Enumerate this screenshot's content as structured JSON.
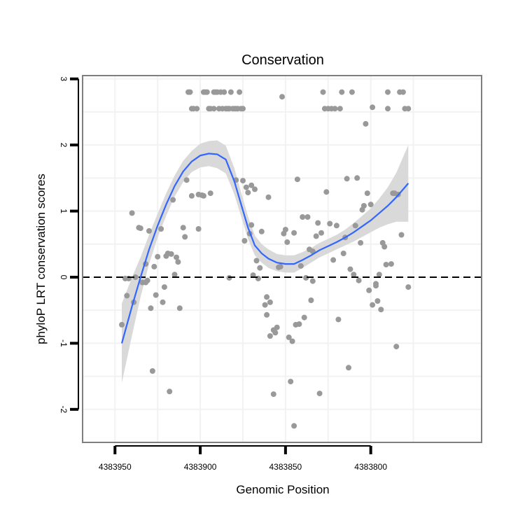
{
  "chart_data": {
    "type": "scatter",
    "title": "Conservation",
    "xlabel": "Genomic Position",
    "ylabel": "phyloP LRT conservation scores",
    "x_reversed": true,
    "xlim": [
      4383735,
      4383969
    ],
    "ylim": [
      -2.5,
      3.05
    ],
    "xticks": [
      4383950,
      4383900,
      4383850,
      4383800
    ],
    "xtick_labels": [
      "4383950",
      "4383900",
      "4383850",
      "4383800"
    ],
    "yticks": [
      -2,
      -1,
      0,
      1,
      2,
      3
    ],
    "ytick_labels": [
      "-2",
      "-1",
      "0",
      "1",
      "2",
      "3"
    ],
    "grid": true,
    "legend": "none",
    "reference_line": {
      "y": 0,
      "style": "dashed",
      "color": "#000000"
    },
    "colors": {
      "points": "#999999",
      "smooth_line": "#3366ff",
      "ribbon": "#d9d9d9",
      "panel_border": "#7f7f7f",
      "grid": "#f2f2f2"
    },
    "points": [
      [
        4383946,
        -0.72
      ],
      [
        4383944,
        -0.02
      ],
      [
        4383943,
        -0.28
      ],
      [
        4383942,
        -0.02
      ],
      [
        4383940,
        0.97
      ],
      [
        4383939,
        -0.38
      ],
      [
        4383938,
        0.0
      ],
      [
        4383936,
        0.75
      ],
      [
        4383935,
        0.74
      ],
      [
        4383934,
        -0.08
      ],
      [
        4383932,
        -0.08
      ],
      [
        4383932,
        0.2
      ],
      [
        4383931,
        -0.05
      ],
      [
        4383930,
        0.7
      ],
      [
        4383929,
        -0.47
      ],
      [
        4383928,
        -1.42
      ],
      [
        4383927,
        0.16
      ],
      [
        4383926,
        -0.27
      ],
      [
        4383925,
        0.31
      ],
      [
        4383923,
        0.73
      ],
      [
        4383922,
        -0.38
      ],
      [
        4383921,
        -0.15
      ],
      [
        4383920,
        0.32
      ],
      [
        4383919,
        0.36
      ],
      [
        4383918,
        -1.73
      ],
      [
        4383917,
        0.35
      ],
      [
        4383916,
        1.17
      ],
      [
        4383915,
        0.04
      ],
      [
        4383914,
        0.3
      ],
      [
        4383913,
        0.23
      ],
      [
        4383912,
        -0.47
      ],
      [
        4383910,
        0.75
      ],
      [
        4383909,
        0.61
      ],
      [
        4383908,
        1.47
      ],
      [
        4383907,
        2.8
      ],
      [
        4383906,
        2.8
      ],
      [
        4383905,
        2.55
      ],
      [
        4383904,
        2.55
      ],
      [
        4383902,
        2.55
      ],
      [
        4383905,
        1.23
      ],
      [
        4383901,
        1.25
      ],
      [
        4383901,
        0.73
      ],
      [
        4383899,
        1.24
      ],
      [
        4383898,
        1.23
      ],
      [
        4383898,
        2.8
      ],
      [
        4383897,
        2.8
      ],
      [
        4383896,
        2.8
      ],
      [
        4383895,
        2.55
      ],
      [
        4383894,
        2.55
      ],
      [
        4383894,
        1.27
      ],
      [
        4383892,
        2.55
      ],
      [
        4383892,
        2.8
      ],
      [
        4383891,
        2.8
      ],
      [
        4383890,
        2.8
      ],
      [
        4383889,
        2.55
      ],
      [
        4383888,
        2.8
      ],
      [
        4383887,
        2.55
      ],
      [
        4383886,
        2.8
      ],
      [
        4383885,
        2.55
      ],
      [
        4383884,
        2.55
      ],
      [
        4383883,
        2.55
      ],
      [
        4383883,
        -0.01
      ],
      [
        4383882,
        2.8
      ],
      [
        4383881,
        2.55
      ],
      [
        4383880,
        2.55
      ],
      [
        4383879,
        2.55
      ],
      [
        4383879,
        1.47
      ],
      [
        4383878,
        2.55
      ],
      [
        4383877,
        2.8
      ],
      [
        4383876,
        2.55
      ],
      [
        4383875,
        2.55
      ],
      [
        4383875,
        1.46
      ],
      [
        4383874,
        0.55
      ],
      [
        4383873,
        1.36
      ],
      [
        4383872,
        1.28
      ],
      [
        4383871,
        0.66
      ],
      [
        4383870,
        0.79
      ],
      [
        4383870,
        1.39
      ],
      [
        4383869,
        0.03
      ],
      [
        4383868,
        1.33
      ],
      [
        4383867,
        0.25
      ],
      [
        4383866,
        -0.02
      ],
      [
        4383865,
        0.14
      ],
      [
        4383864,
        0.69
      ],
      [
        4383862,
        -0.42
      ],
      [
        4383861,
        -0.3
      ],
      [
        4383861,
        -0.57
      ],
      [
        4383860,
        1.21
      ],
      [
        4383859,
        -0.38
      ],
      [
        4383859,
        -0.89
      ],
      [
        4383857,
        -1.77
      ],
      [
        4383857,
        -0.8
      ],
      [
        4383856,
        -0.84
      ],
      [
        4383855,
        -0.76
      ],
      [
        4383854,
        0.15
      ],
      [
        4383853,
        0.16
      ],
      [
        4383852,
        2.73
      ],
      [
        4383851,
        0.66
      ],
      [
        4383850,
        0.72
      ],
      [
        4383849,
        0.53
      ],
      [
        4383848,
        -0.91
      ],
      [
        4383847,
        -1.58
      ],
      [
        4383846,
        -0.97
      ],
      [
        4383845,
        -2.25
      ],
      [
        4383845,
        0.67
      ],
      [
        4383844,
        -0.72
      ],
      [
        4383843,
        1.48
      ],
      [
        4383842,
        -0.71
      ],
      [
        4383841,
        0.17
      ],
      [
        4383840,
        0.91
      ],
      [
        4383839,
        -0.61
      ],
      [
        4383838,
        -0.01
      ],
      [
        4383837,
        0.91
      ],
      [
        4383836,
        0.42
      ],
      [
        4383835,
        -0.35
      ],
      [
        4383834,
        0.39
      ],
      [
        4383834,
        -0.06
      ],
      [
        4383832,
        0.62
      ],
      [
        4383831,
        0.82
      ],
      [
        4383830,
        -1.76
      ],
      [
        4383829,
        0.67
      ],
      [
        4383828,
        2.8
      ],
      [
        4383827,
        2.55
      ],
      [
        4383826,
        1.29
      ],
      [
        4383825,
        2.55
      ],
      [
        4383824,
        0.81
      ],
      [
        4383823,
        2.55
      ],
      [
        4383822,
        0.26
      ],
      [
        4383821,
        2.55
      ],
      [
        4383820,
        0.78
      ],
      [
        4383819,
        -0.64
      ],
      [
        4383818,
        2.55
      ],
      [
        4383817,
        2.8
      ],
      [
        4383816,
        0.36
      ],
      [
        4383815,
        0.6
      ],
      [
        4383814,
        1.49
      ],
      [
        4383813,
        -1.37
      ],
      [
        4383812,
        0.12
      ],
      [
        4383811,
        2.8
      ],
      [
        4383810,
        0.04
      ],
      [
        4383809,
        0.78
      ],
      [
        4383808,
        1.5
      ],
      [
        4383807,
        -0.05
      ],
      [
        4383806,
        0.52
      ],
      [
        4383805,
        1.02
      ],
      [
        4383804,
        1.08
      ],
      [
        4383803,
        2.32
      ],
      [
        4383802,
        1.27
      ],
      [
        4383801,
        -0.2
      ],
      [
        4383800,
        1.1
      ],
      [
        4383799,
        -0.42
      ],
      [
        4383799,
        2.57
      ],
      [
        4383797,
        -0.13
      ],
      [
        4383796,
        -0.36
      ],
      [
        4383797,
        -0.1
      ],
      [
        4383795,
        0.04
      ],
      [
        4383794,
        -0.49
      ],
      [
        4383793,
        0.52
      ],
      [
        4383792,
        0.46
      ],
      [
        4383791,
        0.19
      ],
      [
        4383790,
        2.8
      ],
      [
        4383790,
        2.55
      ],
      [
        4383788,
        0.2
      ],
      [
        4383787,
        1.27
      ],
      [
        4383786,
        1.27
      ],
      [
        4383785,
        -1.05
      ],
      [
        4383784,
        1.25
      ],
      [
        4383783,
        2.8
      ],
      [
        4383782,
        0.64
      ],
      [
        4383781,
        2.8
      ],
      [
        4383780,
        2.55
      ],
      [
        4383778,
        2.55
      ],
      [
        4383778,
        -0.15
      ]
    ],
    "smooth": {
      "x": [
        4383946,
        4383940,
        4383935,
        4383930,
        4383925,
        4383920,
        4383915,
        4383910,
        4383905,
        4383900,
        4383895,
        4383890,
        4383885,
        4383880,
        4383876,
        4383872,
        4383868,
        4383864,
        4383860,
        4383855,
        4383850,
        4383845,
        4383840,
        4383835,
        4383830,
        4383825,
        4383820,
        4383815,
        4383810,
        4383805,
        4383800,
        4383795,
        4383790,
        4383785,
        4383778
      ],
      "y": [
        -1.0,
        -0.44,
        0.0,
        0.42,
        0.78,
        1.1,
        1.38,
        1.6,
        1.75,
        1.84,
        1.87,
        1.86,
        1.78,
        1.45,
        1.1,
        0.75,
        0.48,
        0.36,
        0.28,
        0.22,
        0.2,
        0.2,
        0.26,
        0.33,
        0.41,
        0.47,
        0.53,
        0.6,
        0.68,
        0.77,
        0.86,
        0.97,
        1.08,
        1.21,
        1.42
      ],
      "lower": [
        -1.6,
        -0.88,
        -0.3,
        0.2,
        0.6,
        0.93,
        1.22,
        1.44,
        1.59,
        1.66,
        1.68,
        1.65,
        1.57,
        1.25,
        0.92,
        0.58,
        0.33,
        0.22,
        0.14,
        0.09,
        0.07,
        0.07,
        0.14,
        0.22,
        0.3,
        0.36,
        0.42,
        0.48,
        0.54,
        0.61,
        0.68,
        0.75,
        0.8,
        0.84,
        0.84
      ],
      "upper": [
        -0.4,
        0.0,
        0.3,
        0.64,
        0.96,
        1.27,
        1.54,
        1.76,
        1.91,
        2.02,
        2.06,
        2.07,
        1.99,
        1.65,
        1.28,
        0.92,
        0.63,
        0.5,
        0.42,
        0.35,
        0.33,
        0.33,
        0.38,
        0.44,
        0.52,
        0.58,
        0.64,
        0.72,
        0.82,
        0.93,
        1.04,
        1.19,
        1.36,
        1.58,
        2.0
      ]
    }
  }
}
